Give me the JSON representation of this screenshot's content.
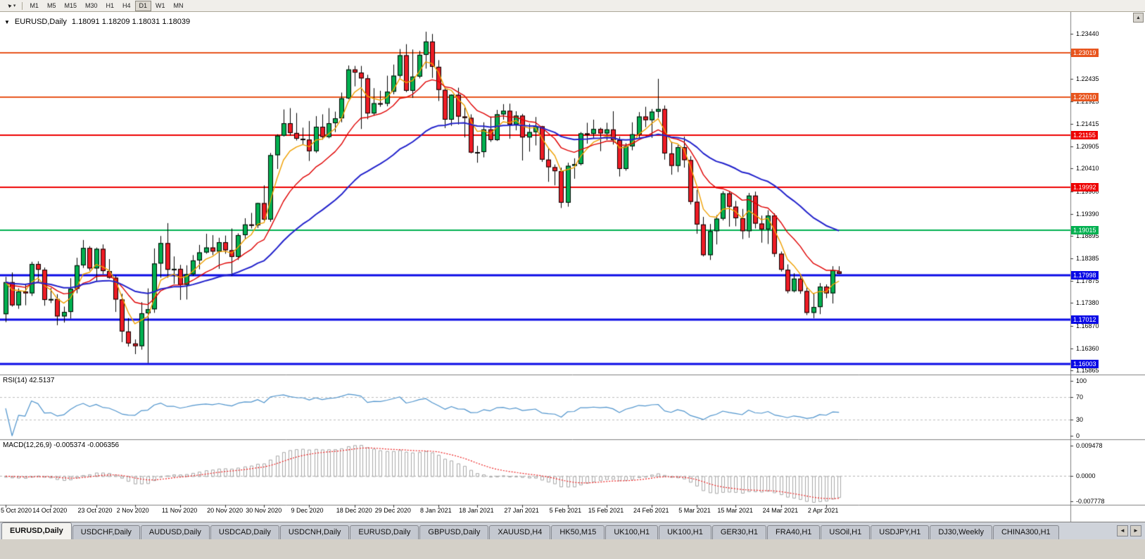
{
  "toolbar": {
    "pointer_glyph": "◄",
    "dropdown_glyph": "▾",
    "timeframes": [
      "M1",
      "M5",
      "M15",
      "M30",
      "H1",
      "H4",
      "D1",
      "W1",
      "MN"
    ],
    "active_timeframe": "D1"
  },
  "chart_header": {
    "collapse_glyph": "▼",
    "symbol": "EURUSD,Daily",
    "ohlc": "1.18091 1.18209 1.18031 1.18039"
  },
  "scroll_up_glyph": "▲",
  "price_axis": {
    "ticks": [
      "1.23440",
      "1.22990",
      "1.22435",
      "1.21925",
      "1.21415",
      "1.20905",
      "1.20410",
      "1.19900",
      "1.19390",
      "1.18895",
      "1.18385",
      "1.17875",
      "1.17380",
      "1.16870",
      "1.16360",
      "1.15865"
    ]
  },
  "rsi_pane": {
    "label": "RSI(14) 42.5137",
    "ticks": [
      "100",
      "70",
      "30",
      "0"
    ],
    "levels": [
      70,
      30
    ],
    "line_color": "#4f94cd"
  },
  "macd_pane": {
    "label": "MACD(12,26,9) -0.005374 -0.006356",
    "ticks": [
      "0.009478",
      "0.0000",
      "-0.007778"
    ],
    "histogram_color": "#a8a8a8",
    "signal_color": "#ee2222"
  },
  "date_axis": {
    "ticks": [
      {
        "index": 0,
        "label": "5 Oct 2020"
      },
      {
        "index": 7,
        "label": "14 Oct 2020"
      },
      {
        "index": 14,
        "label": "23 Oct 2020"
      },
      {
        "index": 20,
        "label": "2 Nov 2020"
      },
      {
        "index": 27,
        "label": "11 Nov 2020"
      },
      {
        "index": 34,
        "label": "20 Nov 2020"
      },
      {
        "index": 40,
        "label": "30 Nov 2020"
      },
      {
        "index": 47,
        "label": "9 Dec 2020"
      },
      {
        "index": 54,
        "label": "18 Dec 2020"
      },
      {
        "index": 60,
        "label": "29 Dec 2020"
      },
      {
        "index": 67,
        "label": "8 Jan 2021"
      },
      {
        "index": 73,
        "label": "18 Jan 2021"
      },
      {
        "index": 80,
        "label": "27 Jan 2021"
      },
      {
        "index": 87,
        "label": "5 Feb 2021"
      },
      {
        "index": 93,
        "label": "15 Feb 2021"
      },
      {
        "index": 100,
        "label": "24 Feb 2021"
      },
      {
        "index": 107,
        "label": "5 Mar 2021"
      },
      {
        "index": 113,
        "label": "15 Mar 2021"
      },
      {
        "index": 120,
        "label": "24 Mar 2021"
      },
      {
        "index": 127,
        "label": "2 Apr 2021"
      }
    ]
  },
  "bottom_tabs": {
    "active_index": 0,
    "prev_glyph": "◄",
    "next_glyph": "►",
    "tabs": [
      "EURUSD,Daily",
      "USDCHF,Daily",
      "AUDUSD,Daily",
      "USDCAD,Daily",
      "USDCNH,Daily",
      "EURUSD,Daily",
      "GBPUSD,Daily",
      "XAUUSD,H4",
      "HK50,M15",
      "UK100,H1",
      "UK100,H1",
      "GER30,H1",
      "FRA40,H1",
      "USOil,H1",
      "USDJPY,H1",
      "DJ30,Weekly",
      "CHINA300,H1"
    ]
  },
  "chart_data": {
    "type": "candlestick",
    "symbol": "EURUSD",
    "timeframe": "Daily",
    "up_color": "#00B050",
    "down_color": "#EE1C25",
    "y_range": [
      1.1577,
      1.2384
    ],
    "moving_averages": [
      {
        "period": 5,
        "color": "#F0A000",
        "width": 1.4
      },
      {
        "period": 13,
        "color": "#E00000",
        "width": 1.4
      },
      {
        "period": 34,
        "color": "#2222CC",
        "width": 2
      }
    ],
    "levels": [
      {
        "label": "1.23019",
        "value": 1.23019,
        "color": "#E8551E",
        "width": 2
      },
      {
        "label": "1.22010",
        "value": 1.2201,
        "color": "#E8551E",
        "width": 2
      },
      {
        "label": "1.21155",
        "value": 1.21155,
        "color": "#EE0000",
        "width": 2
      },
      {
        "label": "1.19992",
        "value": 1.19992,
        "color": "#EE0000",
        "width": 2
      },
      {
        "label": "1.19015",
        "value": 1.19015,
        "color": "#00B050",
        "width": 2
      },
      {
        "label": "1.17998",
        "value": 1.17998,
        "color": "#0A0AE6",
        "width": 3
      },
      {
        "label": "1.17012",
        "value": 1.17012,
        "color": "#0A0AE6",
        "width": 3
      },
      {
        "label": "1.16003",
        "value": 1.16003,
        "color": "#0A0AE6",
        "width": 3
      }
    ],
    "ohlc": [
      [
        1.1713,
        1.1797,
        1.1695,
        1.1785
      ],
      [
        1.1785,
        1.1807,
        1.173,
        1.1733
      ],
      [
        1.1733,
        1.1771,
        1.1725,
        1.1764
      ],
      [
        1.1764,
        1.1781,
        1.1733,
        1.176
      ],
      [
        1.176,
        1.1831,
        1.1754,
        1.1826
      ],
      [
        1.1826,
        1.1832,
        1.1785,
        1.1813
      ],
      [
        1.1813,
        1.1818,
        1.1732,
        1.1745
      ],
      [
        1.1745,
        1.1772,
        1.1738,
        1.1747
      ],
      [
        1.1747,
        1.1758,
        1.1688,
        1.1708
      ],
      [
        1.1708,
        1.173,
        1.1694,
        1.1718
      ],
      [
        1.1718,
        1.1794,
        1.1703,
        1.177
      ],
      [
        1.177,
        1.184,
        1.176,
        1.1823
      ],
      [
        1.1823,
        1.188,
        1.1817,
        1.1862
      ],
      [
        1.1862,
        1.1866,
        1.1811,
        1.1816
      ],
      [
        1.1816,
        1.1863,
        1.1786,
        1.186
      ],
      [
        1.186,
        1.187,
        1.1803,
        1.181
      ],
      [
        1.181,
        1.1837,
        1.1793,
        1.1795
      ],
      [
        1.1795,
        1.18,
        1.1718,
        1.1746
      ],
      [
        1.1746,
        1.1759,
        1.165,
        1.1674
      ],
      [
        1.1674,
        1.1704,
        1.164,
        1.1647
      ],
      [
        1.1647,
        1.1656,
        1.1623,
        1.1641
      ],
      [
        1.1641,
        1.174,
        1.1633,
        1.1715
      ],
      [
        1.1715,
        1.1771,
        1.1603,
        1.1724
      ],
      [
        1.1724,
        1.1861,
        1.1716,
        1.1827
      ],
      [
        1.1827,
        1.1889,
        1.1795,
        1.1873
      ],
      [
        1.1873,
        1.1918,
        1.1795,
        1.1813
      ],
      [
        1.1813,
        1.1843,
        1.1781,
        1.1815
      ],
      [
        1.1815,
        1.1824,
        1.1745,
        1.1779
      ],
      [
        1.1779,
        1.1823,
        1.1746,
        1.1803
      ],
      [
        1.1803,
        1.1846,
        1.1799,
        1.1834
      ],
      [
        1.1834,
        1.1869,
        1.1814,
        1.1852
      ],
      [
        1.1852,
        1.1894,
        1.1849,
        1.1863
      ],
      [
        1.1863,
        1.1891,
        1.1846,
        1.1854
      ],
      [
        1.1854,
        1.1885,
        1.1815,
        1.1875
      ],
      [
        1.1875,
        1.189,
        1.1849,
        1.1857
      ],
      [
        1.1857,
        1.1906,
        1.1799,
        1.1842
      ],
      [
        1.1842,
        1.1895,
        1.1835,
        1.1891
      ],
      [
        1.1891,
        1.1929,
        1.1882,
        1.1915
      ],
      [
        1.1915,
        1.1941,
        1.1906,
        1.1913
      ],
      [
        1.1913,
        1.1964,
        1.1907,
        1.1963
      ],
      [
        1.1963,
        1.2003,
        1.1923,
        1.1926
      ],
      [
        1.1926,
        1.2076,
        1.1921,
        1.2071
      ],
      [
        1.2071,
        1.2118,
        1.204,
        1.2115
      ],
      [
        1.2115,
        1.2174,
        1.2113,
        1.2143
      ],
      [
        1.2143,
        1.2177,
        1.2115,
        1.2121
      ],
      [
        1.2121,
        1.2166,
        1.2104,
        1.2108
      ],
      [
        1.2108,
        1.2133,
        1.2095,
        1.2106
      ],
      [
        1.2106,
        1.2148,
        1.2058,
        1.208
      ],
      [
        1.208,
        1.2159,
        1.2076,
        1.2135
      ],
      [
        1.2135,
        1.2163,
        1.2106,
        1.2112
      ],
      [
        1.2112,
        1.2177,
        1.2109,
        1.2143
      ],
      [
        1.2143,
        1.2169,
        1.2123,
        1.2154
      ],
      [
        1.2154,
        1.2212,
        1.2145,
        1.2199
      ],
      [
        1.2199,
        1.2273,
        1.2197,
        1.2264
      ],
      [
        1.2264,
        1.2272,
        1.2226,
        1.2257
      ],
      [
        1.2257,
        1.2272,
        1.213,
        1.2244
      ],
      [
        1.2244,
        1.2252,
        1.2152,
        1.2165
      ],
      [
        1.2165,
        1.2222,
        1.216,
        1.2188
      ],
      [
        1.2188,
        1.2216,
        1.218,
        1.2187
      ],
      [
        1.2187,
        1.225,
        1.2181,
        1.2214
      ],
      [
        1.2214,
        1.2275,
        1.2208,
        1.225
      ],
      [
        1.225,
        1.231,
        1.2245,
        1.2296
      ],
      [
        1.2296,
        1.2321,
        1.2213,
        1.2216
      ],
      [
        1.2216,
        1.2309,
        1.22,
        1.2248
      ],
      [
        1.2248,
        1.2306,
        1.2244,
        1.2297
      ],
      [
        1.2297,
        1.2349,
        1.2266,
        1.2327
      ],
      [
        1.2327,
        1.2344,
        1.2245,
        1.227
      ],
      [
        1.227,
        1.2285,
        1.2193,
        1.2218
      ],
      [
        1.2218,
        1.2223,
        1.2132,
        1.2151
      ],
      [
        1.2151,
        1.2208,
        1.2137,
        1.2207
      ],
      [
        1.2207,
        1.2223,
        1.214,
        1.2158
      ],
      [
        1.2158,
        1.2178,
        1.2111,
        1.2155
      ],
      [
        1.2155,
        1.2163,
        1.2075,
        1.2077
      ],
      [
        1.2077,
        1.2092,
        1.2054,
        1.2078
      ],
      [
        1.2078,
        1.2145,
        1.2066,
        1.2129
      ],
      [
        1.2129,
        1.2158,
        1.2101,
        1.2105
      ],
      [
        1.2105,
        1.2173,
        1.2103,
        1.2163
      ],
      [
        1.2163,
        1.2186,
        1.2151,
        1.2171
      ],
      [
        1.2171,
        1.2187,
        1.2108,
        1.214
      ],
      [
        1.214,
        1.217,
        1.2127,
        1.216
      ],
      [
        1.216,
        1.2164,
        1.2059,
        1.2111
      ],
      [
        1.2111,
        1.2142,
        1.2079,
        1.2123
      ],
      [
        1.2123,
        1.2157,
        1.2093,
        1.2136
      ],
      [
        1.2136,
        1.2137,
        1.2056,
        1.2061
      ],
      [
        1.2061,
        1.2087,
        1.2011,
        1.2044
      ],
      [
        1.2044,
        1.205,
        1.2003,
        1.2035
      ],
      [
        1.2035,
        1.2043,
        1.1952,
        1.1964
      ],
      [
        1.1964,
        1.2054,
        1.1955,
        1.2047
      ],
      [
        1.2047,
        1.2064,
        1.2018,
        1.2051
      ],
      [
        1.2051,
        1.2123,
        1.2048,
        1.212
      ],
      [
        1.212,
        1.2144,
        1.2097,
        1.2119
      ],
      [
        1.2119,
        1.2151,
        1.2108,
        1.213
      ],
      [
        1.213,
        1.2133,
        1.208,
        1.212
      ],
      [
        1.212,
        1.2144,
        1.2105,
        1.2129
      ],
      [
        1.2129,
        1.217,
        1.2095,
        1.2105
      ],
      [
        1.2105,
        1.2113,
        1.2023,
        1.204
      ],
      [
        1.204,
        1.2098,
        1.2036,
        1.2091
      ],
      [
        1.2091,
        1.2145,
        1.2082,
        1.2118
      ],
      [
        1.2118,
        1.2168,
        1.2108,
        1.2158
      ],
      [
        1.2158,
        1.218,
        1.2134,
        1.215
      ],
      [
        1.215,
        1.2175,
        1.211,
        1.2169
      ],
      [
        1.2169,
        1.2243,
        1.2155,
        1.2175
      ],
      [
        1.2175,
        1.2183,
        1.2061,
        1.2075
      ],
      [
        1.2075,
        1.2101,
        1.2027,
        1.2047
      ],
      [
        1.2047,
        1.2094,
        1.2033,
        1.2089
      ],
      [
        1.2089,
        1.2113,
        1.2043,
        1.206
      ],
      [
        1.206,
        1.2069,
        1.196,
        1.1966
      ],
      [
        1.1966,
        1.1993,
        1.1894,
        1.1915
      ],
      [
        1.1915,
        1.1932,
        1.1843,
        1.1846
      ],
      [
        1.1846,
        1.1916,
        1.1835,
        1.19
      ],
      [
        1.19,
        1.1936,
        1.187,
        1.1928
      ],
      [
        1.1928,
        1.199,
        1.1924,
        1.1985
      ],
      [
        1.1985,
        1.1989,
        1.191,
        1.1955
      ],
      [
        1.1955,
        1.1968,
        1.1911,
        1.1929
      ],
      [
        1.1929,
        1.195,
        1.1882,
        1.19
      ],
      [
        1.19,
        1.1986,
        1.1885,
        1.198
      ],
      [
        1.198,
        1.1989,
        1.1906,
        1.1917
      ],
      [
        1.1917,
        1.1935,
        1.1874,
        1.1904
      ],
      [
        1.1904,
        1.1947,
        1.1871,
        1.1935
      ],
      [
        1.1935,
        1.194,
        1.1842,
        1.1849
      ],
      [
        1.1849,
        1.1854,
        1.1809,
        1.1813
      ],
      [
        1.1813,
        1.1825,
        1.176,
        1.1765
      ],
      [
        1.1765,
        1.1805,
        1.1762,
        1.1793
      ],
      [
        1.1793,
        1.1798,
        1.1759,
        1.1765
      ],
      [
        1.1765,
        1.1774,
        1.1711,
        1.1716
      ],
      [
        1.1716,
        1.176,
        1.1704,
        1.1729
      ],
      [
        1.1729,
        1.1783,
        1.1713,
        1.1775
      ],
      [
        1.1775,
        1.178,
        1.1749,
        1.176
      ],
      [
        1.176,
        1.1821,
        1.1737,
        1.1812
      ],
      [
        1.18091,
        1.18209,
        1.18031,
        1.18039
      ]
    ]
  }
}
